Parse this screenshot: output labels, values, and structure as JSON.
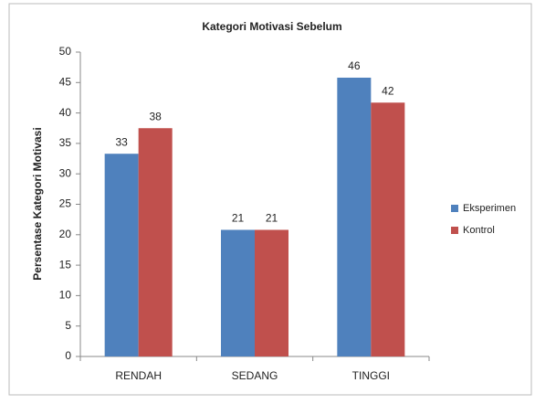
{
  "chart_data": {
    "type": "bar",
    "title": "Kategori Motivasi Sebelum",
    "y_label": "Persentase Kategori Motivasi",
    "categories": [
      "RENDAH",
      "SEDANG",
      "TINGGI"
    ],
    "series": [
      {
        "name": "Eksperimen",
        "color": "#4f81bd",
        "values": [
          33.3,
          20.8,
          45.8
        ],
        "value_labels": [
          "33",
          "21",
          "46"
        ]
      },
      {
        "name": "Kontrol",
        "color": "#c0504d",
        "values": [
          37.5,
          20.8,
          41.7
        ],
        "value_labels": [
          "38",
          "21",
          "42"
        ]
      }
    ],
    "ylim": [
      0,
      50
    ],
    "yticks": [
      0,
      5,
      10,
      15,
      20,
      25,
      30,
      35,
      40,
      45,
      50
    ],
    "grid": false,
    "legend": "right"
  }
}
